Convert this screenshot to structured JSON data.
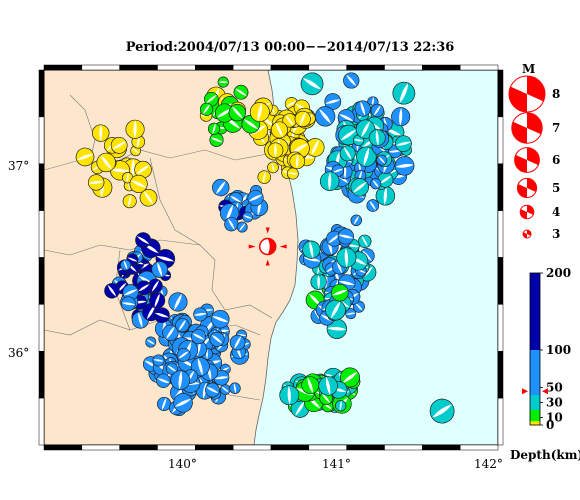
{
  "title": "Period:2004/07/13 00:00−−2014/07/13 22:36",
  "map": {
    "lon_range": [
      139.1,
      142.1
    ],
    "lat_range": [
      35.6,
      37.6
    ],
    "lon_ticks": [
      {
        "v": 140,
        "label": "140°"
      },
      {
        "v": 141,
        "label": "141°"
      },
      {
        "v": 142,
        "label": "142°"
      }
    ],
    "lat_ticks": [
      {
        "v": 36,
        "label": "36°"
      },
      {
        "v": 37,
        "label": "37°"
      }
    ],
    "colors": {
      "land": "#fce6cc",
      "sea": "#e0ffff",
      "event": "#ff0000"
    },
    "main_event": {
      "lon": 140.56,
      "lat": 36.58
    }
  },
  "magnitude_legend": {
    "title": "M",
    "items": [
      {
        "m": 8,
        "label": "8"
      },
      {
        "m": 7,
        "label": "7"
      },
      {
        "m": 6,
        "label": "6"
      },
      {
        "m": 5,
        "label": "5"
      },
      {
        "m": 4,
        "label": "4"
      },
      {
        "m": 3,
        "label": "3"
      }
    ]
  },
  "depth_legend": {
    "title": "Depth(km)",
    "range": [
      0,
      200
    ],
    "ticks": [
      {
        "v": 200,
        "label": "200"
      },
      {
        "v": 100,
        "label": "100"
      },
      {
        "v": 50,
        "label": "50"
      },
      {
        "v": 30,
        "label": "30"
      },
      {
        "v": 10,
        "label": "10"
      },
      {
        "v": 0,
        "label": "0"
      }
    ],
    "bands": [
      {
        "from": 0,
        "to": 5,
        "color": "#ffe400"
      },
      {
        "from": 5,
        "to": 20,
        "color": "#00ee00"
      },
      {
        "from": 20,
        "to": 40,
        "color": "#00cccc"
      },
      {
        "from": 40,
        "to": 100,
        "color": "#1e90ff"
      },
      {
        "from": 100,
        "to": 200,
        "color": "#0000aa"
      }
    ],
    "main_event_depth": 45
  }
}
